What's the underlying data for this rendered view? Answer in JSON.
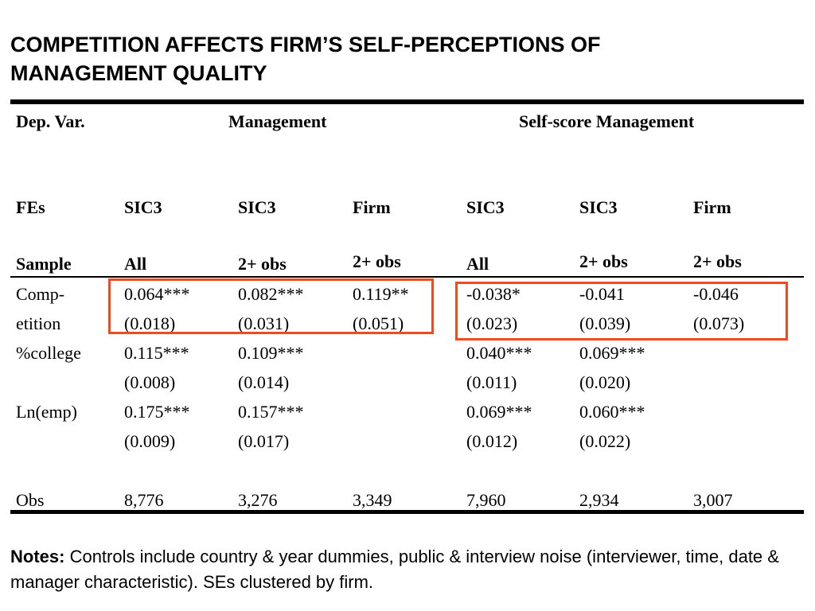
{
  "title": {
    "line1": "COMPETITION AFFECTS FIRM’S SELF-PERCEPTIONS OF",
    "line2": "MANAGEMENT QUALITY"
  },
  "header": {
    "depvar_label": "Dep. Var.",
    "group1": "Management",
    "group2": "Self-score Management",
    "fes_label": "FEs",
    "fes": [
      "SIC3",
      "SIC3",
      "Firm",
      "SIC3",
      "SIC3",
      "Firm"
    ],
    "sample_label": "Sample",
    "sample": [
      "All",
      "2+ obs",
      "2+ obs",
      "All",
      "2+ obs",
      "2+ obs"
    ]
  },
  "rows": {
    "competition": {
      "label_line1": "Comp-",
      "label_line2": "etition",
      "coef": [
        "0.064***",
        "0.082***",
        "0.119**",
        "-0.038*",
        "-0.041",
        "-0.046"
      ],
      "se": [
        "(0.018)",
        "(0.031)",
        "(0.051)",
        "(0.023)",
        "(0.039)",
        "(0.073)"
      ]
    },
    "college": {
      "label": "%college",
      "coef": [
        "0.115***",
        "0.109***",
        "",
        "0.040***",
        "0.069***",
        ""
      ],
      "se": [
        "(0.008)",
        "(0.014)",
        "",
        "(0.011)",
        "(0.020)",
        ""
      ]
    },
    "lnemp": {
      "label": "Ln(emp)",
      "coef": [
        "0.175***",
        "0.157***",
        "",
        "0.069***",
        "0.060***",
        ""
      ],
      "se": [
        "(0.009)",
        "(0.017)",
        "",
        "(0.012)",
        "(0.022)",
        ""
      ]
    },
    "obs": {
      "label": "Obs",
      "values": [
        "8,776",
        "3,276",
        "3,349",
        "7,960",
        "2,934",
        "3,007"
      ]
    }
  },
  "highlight_color": "#f04a1e",
  "notes": {
    "label": "Notes:",
    "text": " Controls include country & year dummies, public & interview noise (interviewer, time, date & manager characteristic). SEs clustered by firm."
  }
}
